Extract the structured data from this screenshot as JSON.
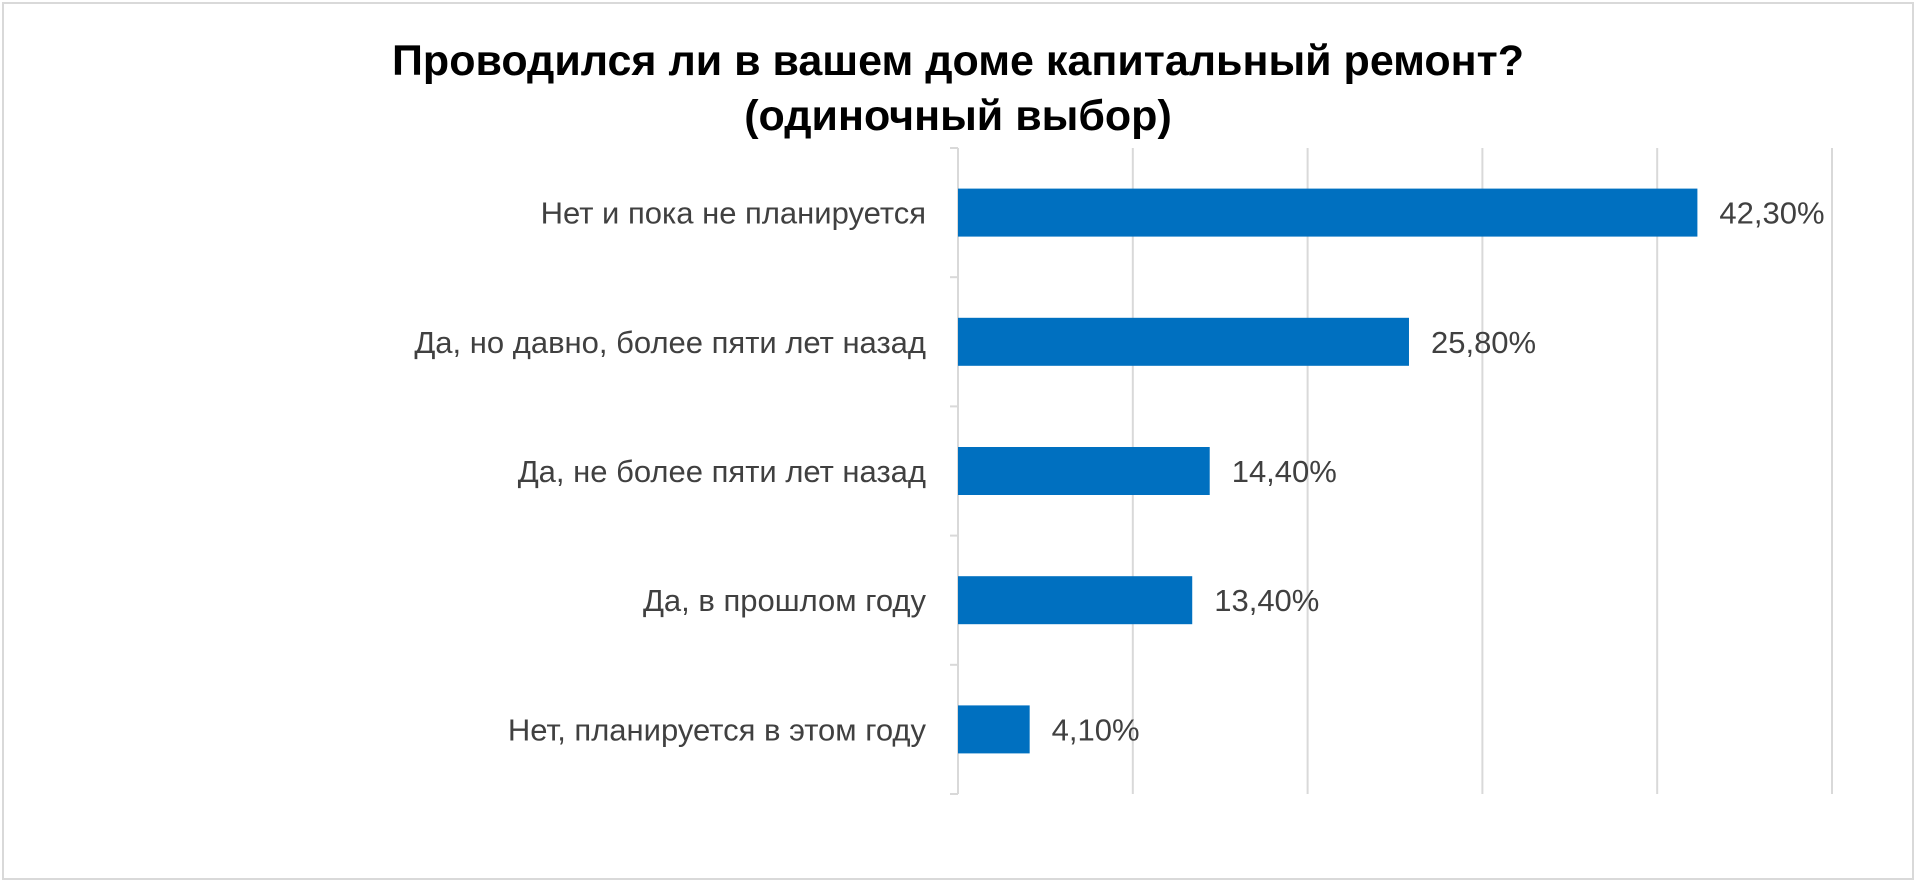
{
  "chart_data": {
    "type": "bar",
    "orientation": "horizontal",
    "title": "Проводился ли в вашем доме капитальный ремонт?",
    "subtitle": "(одиночный выбор)",
    "categories": [
      "Нет и пока не планируется",
      "Да, но давно, более пяти лет назад",
      "Да, не более пяти лет назад",
      "Да, в прошлом году",
      "Нет, планируется в этом году"
    ],
    "values": [
      42.3,
      25.8,
      14.4,
      13.4,
      4.1
    ],
    "data_labels": [
      "42,30%",
      "25,80%",
      "14,40%",
      "13,40%",
      "4,10%"
    ],
    "xlim": [
      0,
      50
    ],
    "x_gridline_step": 10,
    "grid": true,
    "legend": "none",
    "colors": {
      "bar": "#0070C0",
      "gridline": "#D9D9D9",
      "text": "#404040",
      "title": "#000000"
    }
  }
}
